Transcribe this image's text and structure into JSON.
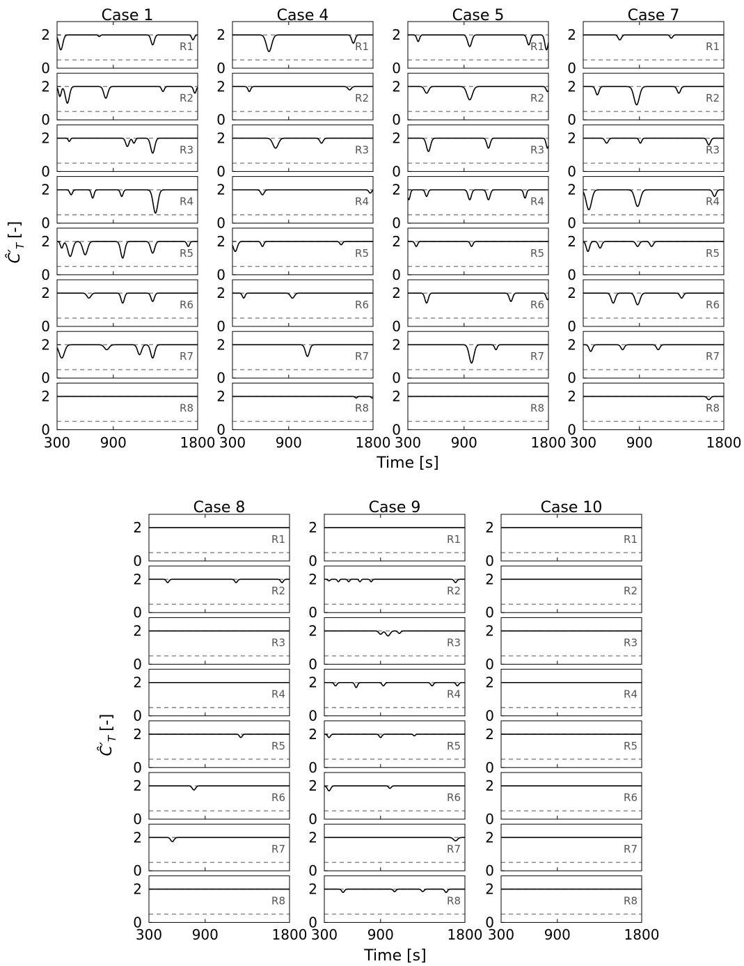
{
  "chart_data": [
    {
      "type": "line",
      "figure_part": "top",
      "columns": [
        "Case 1",
        "Case 4",
        "Case 5",
        "Case 7"
      ],
      "rows": [
        "R1",
        "R2",
        "R3",
        "R4",
        "R5",
        "R6",
        "R7",
        "R8"
      ],
      "xlabel": "Time [s]",
      "ylabel_main": "Ĉ′",
      "ylabel_sub": "T",
      "ylabel_unit": "[-]",
      "xlim": [
        300,
        1800
      ],
      "ylim": [
        0,
        2.8
      ],
      "xticks": [
        300,
        900,
        1800
      ],
      "yticks": [
        0,
        2
      ],
      "reference_lines": {
        "upper": 2.0,
        "lower": 0.5
      },
      "baseline": 2.0,
      "dips": {
        "Case 1": {
          "R1": [
            [
              340,
              0.9,
              30
            ],
            [
              750,
              0.1,
              15
            ],
            [
              1320,
              0.6,
              25
            ],
            [
              1750,
              0.3,
              20
            ]
          ],
          "R2": [
            [
              330,
              0.6,
              20
            ],
            [
              410,
              1.0,
              30
            ],
            [
              820,
              0.7,
              30
            ],
            [
              1430,
              0.3,
              20
            ],
            [
              1770,
              0.4,
              20
            ]
          ],
          "R3": [
            [
              430,
              0.2,
              15
            ],
            [
              1050,
              0.5,
              25
            ],
            [
              1120,
              0.3,
              20
            ],
            [
              1320,
              0.9,
              30
            ]
          ],
          "R4": [
            [
              450,
              0.3,
              20
            ],
            [
              680,
              0.5,
              20
            ],
            [
              990,
              0.4,
              20
            ],
            [
              1350,
              1.4,
              35
            ]
          ],
          "R5": [
            [
              350,
              0.4,
              20
            ],
            [
              440,
              0.9,
              35
            ],
            [
              600,
              0.8,
              35
            ],
            [
              1000,
              1.0,
              30
            ],
            [
              1320,
              0.7,
              30
            ],
            [
              1700,
              0.3,
              20
            ]
          ],
          "R6": [
            [
              640,
              0.3,
              30
            ],
            [
              1000,
              0.6,
              25
            ],
            [
              1320,
              0.5,
              25
            ]
          ],
          "R7": [
            [
              350,
              0.8,
              40
            ],
            [
              830,
              0.3,
              35
            ],
            [
              1180,
              0.6,
              30
            ],
            [
              1320,
              0.8,
              30
            ]
          ],
          "R8": []
        },
        "Case 4": {
          "R1": [
            [
              690,
              1.0,
              40
            ],
            [
              1590,
              0.5,
              25
            ]
          ],
          "R2": [
            [
              480,
              0.3,
              20
            ],
            [
              1550,
              0.2,
              25
            ]
          ],
          "R3": [
            [
              760,
              0.6,
              40
            ],
            [
              1250,
              0.3,
              25
            ]
          ],
          "R4": [
            [
              620,
              0.3,
              25
            ],
            [
              1770,
              0.2,
              20
            ]
          ],
          "R5": [
            [
              330,
              0.6,
              30
            ],
            [
              620,
              0.3,
              20
            ],
            [
              1460,
              0.2,
              20
            ]
          ],
          "R6": [
            [
              420,
              0.3,
              20
            ],
            [
              940,
              0.3,
              30
            ]
          ],
          "R7": [
            [
              1100,
              0.7,
              30
            ]
          ],
          "R8": [
            [
              1620,
              0.1,
              15
            ],
            [
              1790,
              0.1,
              15
            ]
          ]
        },
        "Case 5": {
          "R1": [
            [
              410,
              0.4,
              20
            ],
            [
              960,
              0.7,
              30
            ],
            [
              1590,
              0.6,
              25
            ],
            [
              1780,
              0.9,
              25
            ]
          ],
          "R2": [
            [
              500,
              0.4,
              30
            ],
            [
              960,
              0.8,
              40
            ],
            [
              1790,
              0.3,
              20
            ]
          ],
          "R3": [
            [
              520,
              0.8,
              30
            ],
            [
              1160,
              0.6,
              25
            ],
            [
              1790,
              0.6,
              20
            ]
          ],
          "R4": [
            [
              310,
              0.6,
              20
            ],
            [
              500,
              0.4,
              20
            ],
            [
              960,
              0.6,
              25
            ],
            [
              1160,
              0.6,
              25
            ],
            [
              1550,
              0.5,
              20
            ]
          ],
          "R5": [
            [
              390,
              0.3,
              20
            ],
            [
              980,
              0.3,
              20
            ]
          ],
          "R6": [
            [
              500,
              0.6,
              25
            ],
            [
              1400,
              0.5,
              25
            ],
            [
              1790,
              0.4,
              20
            ]
          ],
          "R7": [
            [
              980,
              1.1,
              35
            ],
            [
              1240,
              0.3,
              20
            ]
          ],
          "R8": []
        },
        "Case 7": {
          "R1": [
            [
              690,
              0.3,
              25
            ],
            [
              1240,
              0.2,
              20
            ]
          ],
          "R2": [
            [
              450,
              0.5,
              25
            ],
            [
              870,
              1.1,
              40
            ],
            [
              1320,
              0.4,
              25
            ]
          ],
          "R3": [
            [
              550,
              0.3,
              25
            ],
            [
              910,
              0.3,
              20
            ],
            [
              1640,
              0.4,
              25
            ]
          ],
          "R4": [
            [
              360,
              1.2,
              40
            ],
            [
              880,
              1.0,
              40
            ],
            [
              1700,
              0.4,
              25
            ]
          ],
          "R5": [
            [
              350,
              0.6,
              25
            ],
            [
              480,
              0.4,
              25
            ],
            [
              880,
              0.3,
              25
            ],
            [
              1030,
              0.3,
              25
            ]
          ],
          "R6": [
            [
              620,
              0.6,
              30
            ],
            [
              880,
              0.7,
              35
            ],
            [
              1350,
              0.3,
              25
            ]
          ],
          "R7": [
            [
              380,
              0.4,
              25
            ],
            [
              720,
              0.3,
              25
            ],
            [
              1100,
              0.3,
              25
            ]
          ],
          "R8": [
            [
              1640,
              0.2,
              25
            ]
          ]
        }
      }
    },
    {
      "type": "line",
      "figure_part": "bottom",
      "columns": [
        "Case 8",
        "Case 9",
        "Case 10"
      ],
      "rows": [
        "R1",
        "R2",
        "R3",
        "R4",
        "R5",
        "R6",
        "R7",
        "R8"
      ],
      "xlabel": "Time [s]",
      "ylabel_main": "Ĉ′",
      "ylabel_sub": "T",
      "ylabel_unit": "[-]",
      "xlim": [
        300,
        1800
      ],
      "ylim": [
        0,
        2.8
      ],
      "xticks": [
        300,
        900,
        1800
      ],
      "yticks": [
        0,
        2
      ],
      "reference_lines": {
        "upper": 2.0,
        "lower": 0.5
      },
      "baseline": 2.0,
      "dips": {
        "Case 8": {
          "R1": [],
          "R2": [
            [
              500,
              0.2,
              20
            ],
            [
              1230,
              0.2,
              20
            ],
            [
              1720,
              0.2,
              20
            ]
          ],
          "R3": [],
          "R4": [],
          "R5": [
            [
              1280,
              0.2,
              20
            ]
          ],
          "R6": [
            [
              780,
              0.25,
              25
            ]
          ],
          "R7": [
            [
              550,
              0.25,
              25
            ]
          ],
          "R8": []
        },
        "Case 9": {
          "R1": [],
          "R2": [
            [
              350,
              0.1,
              15
            ],
            [
              450,
              0.15,
              15
            ],
            [
              560,
              0.15,
              15
            ],
            [
              680,
              0.15,
              15
            ],
            [
              800,
              0.15,
              15
            ],
            [
              1700,
              0.2,
              20
            ]
          ],
          "R3": [
            [
              900,
              0.2,
              25
            ],
            [
              980,
              0.3,
              30
            ],
            [
              1100,
              0.15,
              20
            ]
          ],
          "R4": [
            [
              420,
              0.2,
              20
            ],
            [
              640,
              0.3,
              20
            ],
            [
              930,
              0.2,
              20
            ],
            [
              1450,
              0.2,
              20
            ],
            [
              1720,
              0.2,
              20
            ]
          ],
          "R5": [
            [
              350,
              0.2,
              20
            ],
            [
              900,
              0.2,
              20
            ],
            [
              1260,
              0.1,
              15
            ]
          ],
          "R6": [
            [
              350,
              0.3,
              25
            ],
            [
              1000,
              0.15,
              20
            ]
          ],
          "R7": [
            [
              1700,
              0.2,
              30
            ]
          ],
          "R8": [
            [
              500,
              0.2,
              20
            ],
            [
              1050,
              0.15,
              20
            ],
            [
              1350,
              0.15,
              20
            ],
            [
              1600,
              0.2,
              20
            ]
          ]
        },
        "Case 10": {
          "R1": [],
          "R2": [],
          "R3": [],
          "R4": [],
          "R5": [],
          "R6": [],
          "R7": [],
          "R8": []
        }
      }
    }
  ]
}
